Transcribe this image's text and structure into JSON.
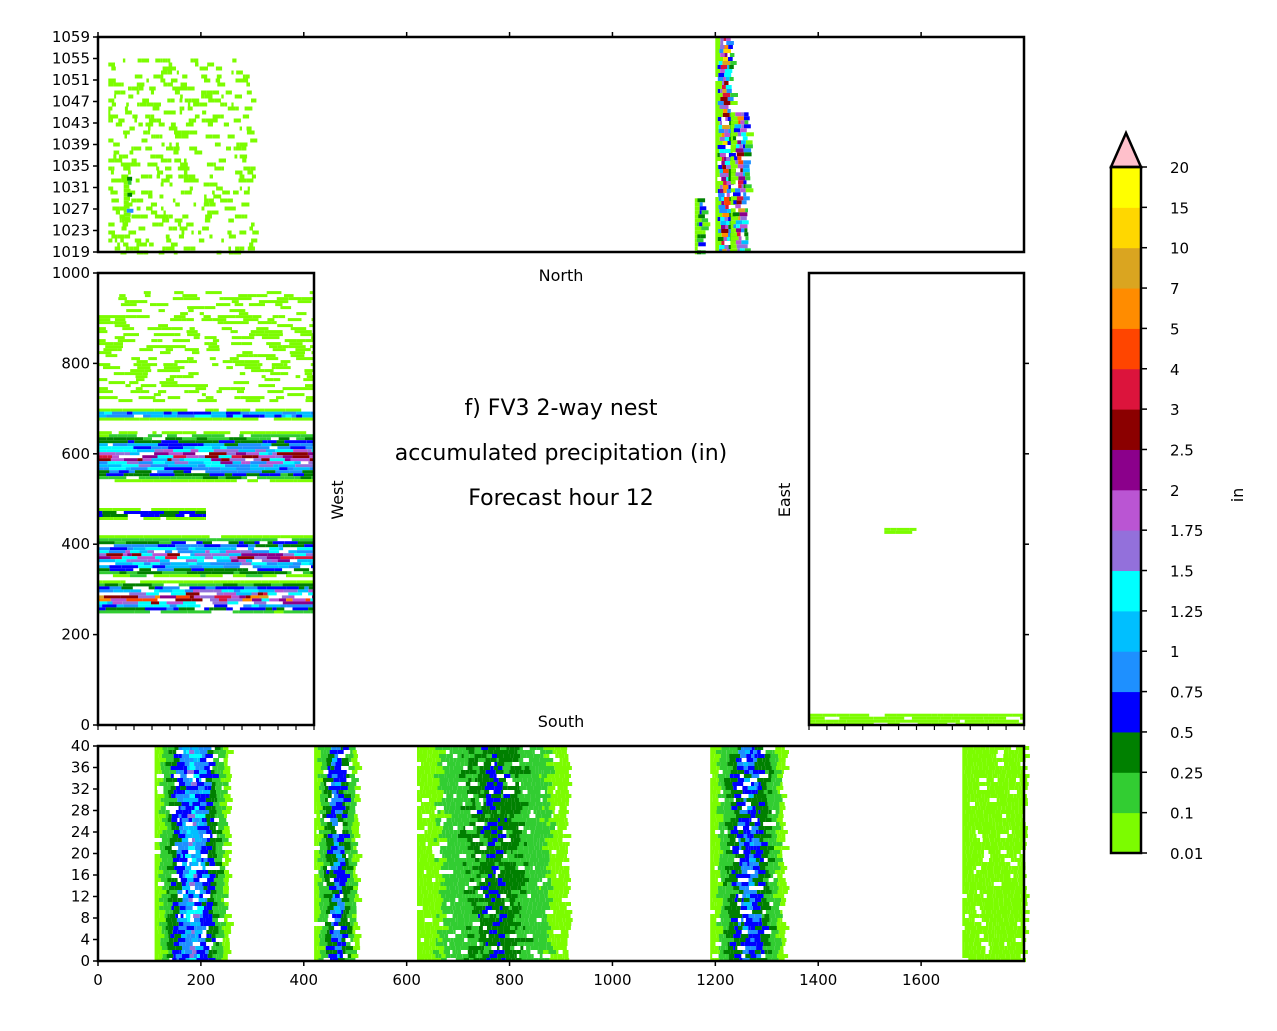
{
  "chart_data": {
    "type": "heatmap",
    "title_lines": [
      "f) FV3 2-way nest",
      "accumulated precipitation (in)",
      "Forecast hour 12"
    ],
    "colorbar": {
      "label": "in",
      "levels": [
        "0.01",
        "0.1",
        "0.25",
        "0.5",
        "0.75",
        "1",
        "1.25",
        "1.5",
        "1.75",
        "2",
        "2.5",
        "3",
        "4",
        "5",
        "7",
        "10",
        "15",
        "20"
      ],
      "colors": [
        "#7cfc00",
        "#32cd32",
        "#008000",
        "#0000ff",
        "#1e90ff",
        "#00bfff",
        "#00ffff",
        "#9370db",
        "#ba55d3",
        "#8b008b",
        "#8b0000",
        "#dc143c",
        "#ff4500",
        "#ff8c00",
        "#daa520",
        "#ffd700",
        "#ffff00"
      ],
      "extend_color": "#ffc0cb"
    },
    "panels": [
      {
        "id": "north",
        "label": "North",
        "xlim": [
          0,
          1800
        ],
        "ylim": [
          1019,
          1059
        ],
        "yticks": [
          "1019",
          "1023",
          "1027",
          "1031",
          "1035",
          "1039",
          "1043",
          "1047",
          "1051",
          "1055",
          "1059"
        ],
        "bands": [
          {
            "orient": "v",
            "from": 1200,
            "to": 1230,
            "lo": 1019,
            "hi": 1059,
            "peak": 10
          },
          {
            "orient": "v",
            "from": 1230,
            "to": 1260,
            "lo": 1019,
            "hi": 1045,
            "peak": 7
          },
          {
            "orient": "v",
            "from": 1160,
            "to": 1175,
            "lo": 1019,
            "hi": 1029,
            "peak": 1
          },
          {
            "orient": "v",
            "from": 20,
            "to": 300,
            "lo": 1019,
            "hi": 1055,
            "peak": 0.01,
            "sparse": true
          },
          {
            "orient": "v",
            "from": 50,
            "to": 60,
            "lo": 1025,
            "hi": 1033,
            "peak": 1
          }
        ]
      },
      {
        "id": "west",
        "label": "West",
        "xlim": [
          0,
          200
        ],
        "ylim": [
          0,
          1000
        ],
        "yticks": [
          "0",
          "200",
          "400",
          "600",
          "800",
          "1000"
        ],
        "bands": [
          {
            "orient": "h",
            "from": 250,
            "to": 320,
            "lo": 0,
            "hi": 200,
            "peak": 7
          },
          {
            "orient": "h",
            "from": 330,
            "to": 420,
            "lo": 0,
            "hi": 200,
            "peak": 3
          },
          {
            "orient": "h",
            "from": 460,
            "to": 480,
            "lo": 0,
            "hi": 100,
            "peak": 1
          },
          {
            "orient": "h",
            "from": 540,
            "to": 650,
            "lo": 0,
            "hi": 200,
            "peak": 3
          },
          {
            "orient": "h",
            "from": 680,
            "to": 700,
            "lo": 0,
            "hi": 200,
            "peak": 2
          },
          {
            "orient": "h",
            "from": 720,
            "to": 960,
            "lo": 0,
            "hi": 200,
            "peak": 0.01,
            "sparse": true
          }
        ]
      },
      {
        "id": "east",
        "label": "East",
        "xlim": [
          0,
          200
        ],
        "ylim": [
          0,
          1000
        ],
        "yticks": [],
        "bands": [
          {
            "orient": "h",
            "from": 5,
            "to": 25,
            "lo": 0,
            "hi": 200,
            "peak": 0.01
          },
          {
            "orient": "h",
            "from": 428,
            "to": 436,
            "lo": 70,
            "hi": 100,
            "peak": 0.01
          }
        ]
      },
      {
        "id": "south",
        "label": "South",
        "xlim": [
          0,
          1800
        ],
        "ylim": [
          0,
          40
        ],
        "xticks": [
          "0",
          "200",
          "400",
          "600",
          "800",
          "1000",
          "1200",
          "1400",
          "1600"
        ],
        "yticks": [
          "0",
          "4",
          "8",
          "12",
          "16",
          "20",
          "24",
          "28",
          "32",
          "36",
          "40"
        ],
        "bands": [
          {
            "orient": "v",
            "from": 110,
            "to": 250,
            "lo": 0,
            "hi": 40,
            "peak": 1.5
          },
          {
            "orient": "v",
            "from": 420,
            "to": 500,
            "lo": 0,
            "hi": 40,
            "peak": 1
          },
          {
            "orient": "v",
            "from": 620,
            "to": 910,
            "lo": 0,
            "hi": 40,
            "peak": 0.5
          },
          {
            "orient": "v",
            "from": 1190,
            "to": 1330,
            "lo": 0,
            "hi": 40,
            "peak": 1
          },
          {
            "orient": "v",
            "from": 1680,
            "to": 1800,
            "lo": 0,
            "hi": 40,
            "peak": 0.01
          }
        ]
      }
    ]
  }
}
